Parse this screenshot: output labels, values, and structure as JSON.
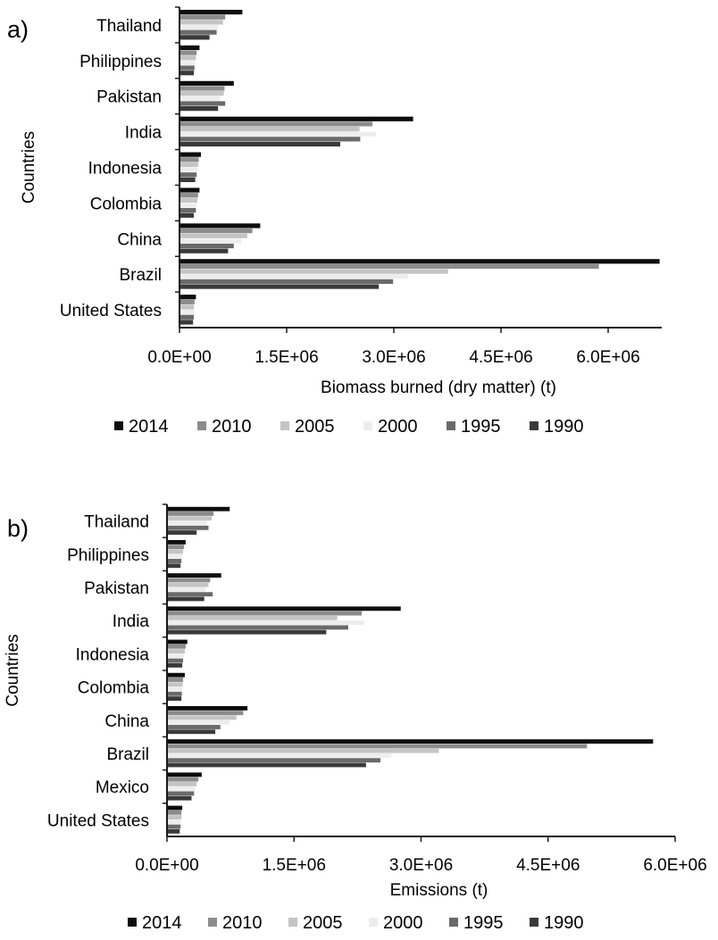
{
  "legend": [
    "2014",
    "2010",
    "2005",
    "2000",
    "1995",
    "1990"
  ],
  "series_colors": {
    "2014": "#0d0d0d",
    "2010": "#8c8c8c",
    "2005": "#c4c4c4",
    "2000": "#ededed",
    "1995": "#6a6a6a",
    "1990": "#3a3a3a"
  },
  "chart_data": [
    {
      "type": "bar",
      "orientation": "horizontal",
      "panel_label": "a)",
      "ylabel": "Countries",
      "xlabel": "Biomass burned (dry matter) (t)",
      "categories": [
        "Thailand",
        "Philippines",
        "Pakistan",
        "India",
        "Indonesia",
        "Colombia",
        "China",
        "Brazil",
        "United States"
      ],
      "xlim": [
        0,
        6750000
      ],
      "xticks": [
        0,
        1500000,
        3000000,
        4500000,
        6000000
      ],
      "xtick_labels": [
        "0.0E+00",
        "1.5E+06",
        "3.0E+06",
        "4.5E+06",
        "6.0E+06"
      ],
      "series": [
        {
          "name": "2014",
          "values": [
            880000,
            280000,
            760000,
            3270000,
            300000,
            280000,
            1130000,
            6720000,
            230000
          ]
        },
        {
          "name": "2010",
          "values": [
            640000,
            240000,
            630000,
            2700000,
            270000,
            260000,
            1020000,
            5870000,
            210000
          ]
        },
        {
          "name": "2005",
          "values": [
            610000,
            230000,
            620000,
            2520000,
            260000,
            250000,
            950000,
            3760000,
            200000
          ]
        },
        {
          "name": "2000",
          "values": [
            540000,
            220000,
            570000,
            2750000,
            250000,
            240000,
            870000,
            3200000,
            200000
          ]
        },
        {
          "name": "1995",
          "values": [
            520000,
            210000,
            640000,
            2530000,
            240000,
            230000,
            760000,
            2990000,
            200000
          ]
        },
        {
          "name": "1990",
          "values": [
            420000,
            200000,
            540000,
            2250000,
            220000,
            200000,
            680000,
            2790000,
            190000
          ]
        }
      ]
    },
    {
      "type": "bar",
      "orientation": "horizontal",
      "panel_label": "b)",
      "ylabel": "Countries",
      "xlabel": "Emissions (t)",
      "categories": [
        "Thailand",
        "Philippines",
        "Pakistan",
        "India",
        "Indonesia",
        "Colombia",
        "China",
        "Brazil",
        "Mexico",
        "United States"
      ],
      "xlim": [
        0,
        6000000
      ],
      "xticks": [
        0,
        1500000,
        3000000,
        4500000,
        6000000
      ],
      "xtick_labels": [
        "0.0E+00",
        "1.5E+06",
        "3.0E+06",
        "4.5E+06",
        "6.0E+06"
      ],
      "series": [
        {
          "name": "2014",
          "values": [
            740000,
            220000,
            640000,
            2760000,
            240000,
            210000,
            950000,
            5740000,
            410000,
            180000
          ]
        },
        {
          "name": "2010",
          "values": [
            550000,
            200000,
            510000,
            2300000,
            220000,
            190000,
            900000,
            4960000,
            370000,
            170000
          ]
        },
        {
          "name": "2005",
          "values": [
            530000,
            190000,
            490000,
            2010000,
            210000,
            185000,
            820000,
            3210000,
            350000,
            170000
          ]
        },
        {
          "name": "2000",
          "values": [
            470000,
            180000,
            460000,
            2330000,
            200000,
            180000,
            740000,
            2650000,
            330000,
            160000
          ]
        },
        {
          "name": "1995",
          "values": [
            490000,
            170000,
            540000,
            2140000,
            190000,
            175000,
            630000,
            2520000,
            320000,
            160000
          ]
        },
        {
          "name": "1990",
          "values": [
            350000,
            160000,
            440000,
            1880000,
            180000,
            170000,
            570000,
            2350000,
            290000,
            150000
          ]
        }
      ]
    }
  ]
}
